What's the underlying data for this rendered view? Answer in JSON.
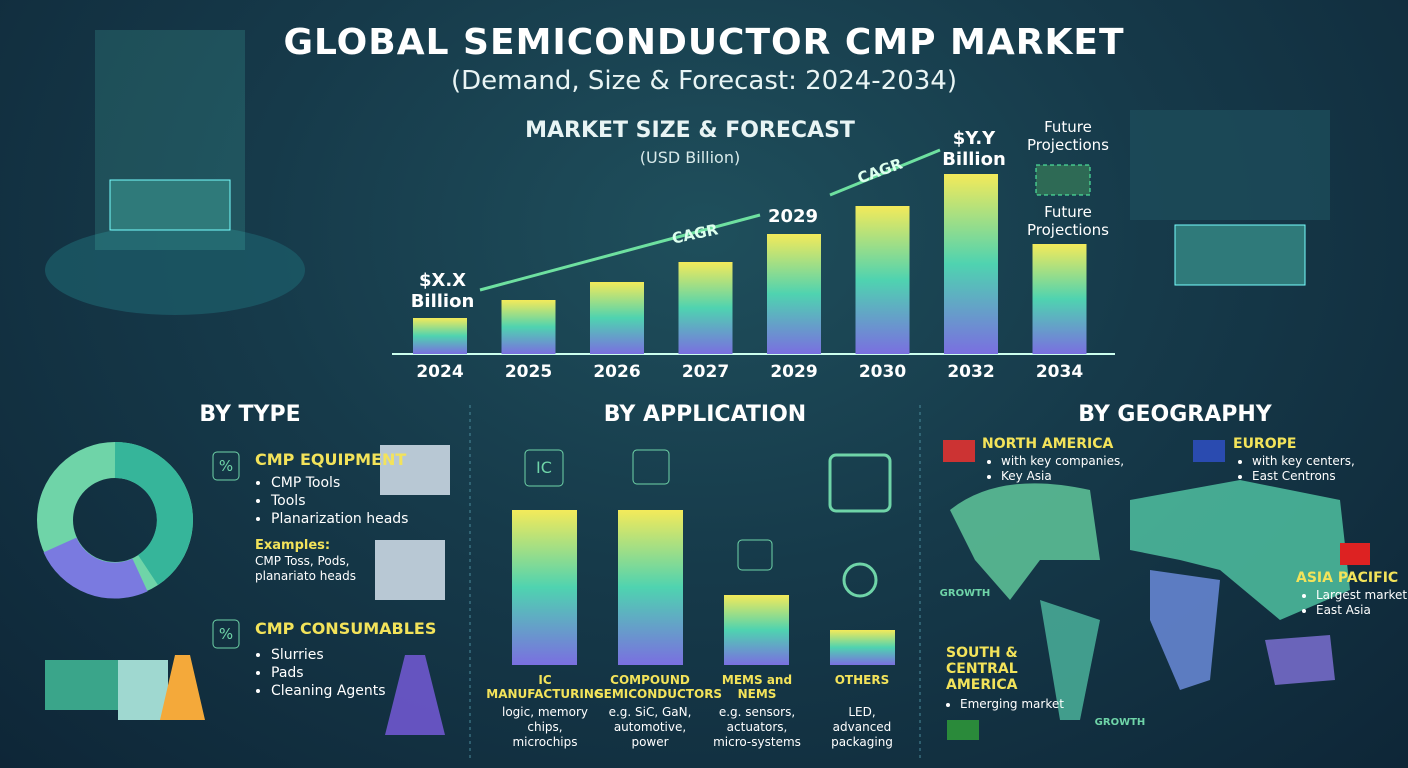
{
  "header": {
    "title": "GLOBAL SEMICONDUCTOR CMP MARKET",
    "subtitle": "(Demand, Size & Forecast: 2024-2034)"
  },
  "chart_data": {
    "type": "bar",
    "title": "MARKET SIZE & FORECAST",
    "subtitle": "(USD Billion)",
    "categories": [
      "2024",
      "2025",
      "2026",
      "2027",
      "2029",
      "2030",
      "2032",
      "2034"
    ],
    "values": [
      36,
      54,
      72,
      92,
      120,
      148,
      180,
      110
    ],
    "annotations": [
      "$X.X Billion",
      "CAGR",
      "2029",
      "CAGR",
      "$Y.Y Billion",
      "Future Projections",
      "Future Projections"
    ]
  },
  "by_type": {
    "title": "BY TYPE",
    "items": [
      {
        "icon": "%",
        "name": "CMP EQUIPMENT",
        "bullets": [
          "CMP Tools",
          "Tools",
          "Planarization heads"
        ],
        "examples_title": "Examples:",
        "examples": "CMP Toss, Pods, planariato heads"
      },
      {
        "icon": "%",
        "name": "CMP CONSUMABLES",
        "bullets": [
          "Slurries",
          "Pads",
          "Cleaning Agents"
        ]
      }
    ]
  },
  "by_application": {
    "title": "BY APPLICATION",
    "items": [
      {
        "icon": "IC",
        "name": "IC MANUFACTURING",
        "desc": "logic, memory chips, microchips"
      },
      {
        "name": "COMPOUND SEMICONDUCTORS",
        "desc": "e.g. SiC, GaN, automotive, power"
      },
      {
        "name": "MEMS and NEMS",
        "desc": "e.g. sensors, actuators, micro-systems"
      },
      {
        "name": "OTHERS",
        "desc": "LED, advanced packaging"
      }
    ]
  },
  "by_geography": {
    "title": "BY GEOGRAPHY",
    "regions": [
      {
        "name": "NORTH AMERICA",
        "bullets": [
          "with key companies,",
          "Key Asia"
        ]
      },
      {
        "name": "EUROPE",
        "bullets": [
          "with key centers,",
          "East Centrons"
        ]
      },
      {
        "name": "ASIA PACIFIC",
        "bullets": [
          "Largest market",
          "East Asia"
        ]
      },
      {
        "name": "SOUTH & CENTRAL AMERICA",
        "bullets": [
          "Emerging market"
        ]
      }
    ],
    "growth_labels": [
      "GROWTH",
      "GROWTH"
    ]
  }
}
